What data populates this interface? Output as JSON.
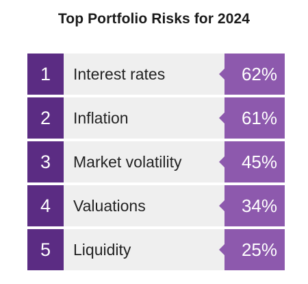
{
  "title": "Top Portfolio Risks for 2024",
  "colors": {
    "rank_bg": "#5b2c83",
    "pct_bg": "#8d59ad",
    "row_bg": "#efefef"
  },
  "chart_data": {
    "type": "table",
    "title": "Top Portfolio Risks for 2024",
    "columns": [
      "rank",
      "risk",
      "percent"
    ],
    "rows": [
      {
        "rank": "1",
        "label": "Interest rates",
        "value": 62,
        "value_label": "62%"
      },
      {
        "rank": "2",
        "label": "Inflation",
        "value": 61,
        "value_label": "61%"
      },
      {
        "rank": "3",
        "label": "Market volatility",
        "value": 45,
        "value_label": "45%"
      },
      {
        "rank": "4",
        "label": "Valuations",
        "value": 34,
        "value_label": "34%"
      },
      {
        "rank": "5",
        "label": "Liquidity",
        "value": 25,
        "value_label": "25%"
      }
    ]
  }
}
